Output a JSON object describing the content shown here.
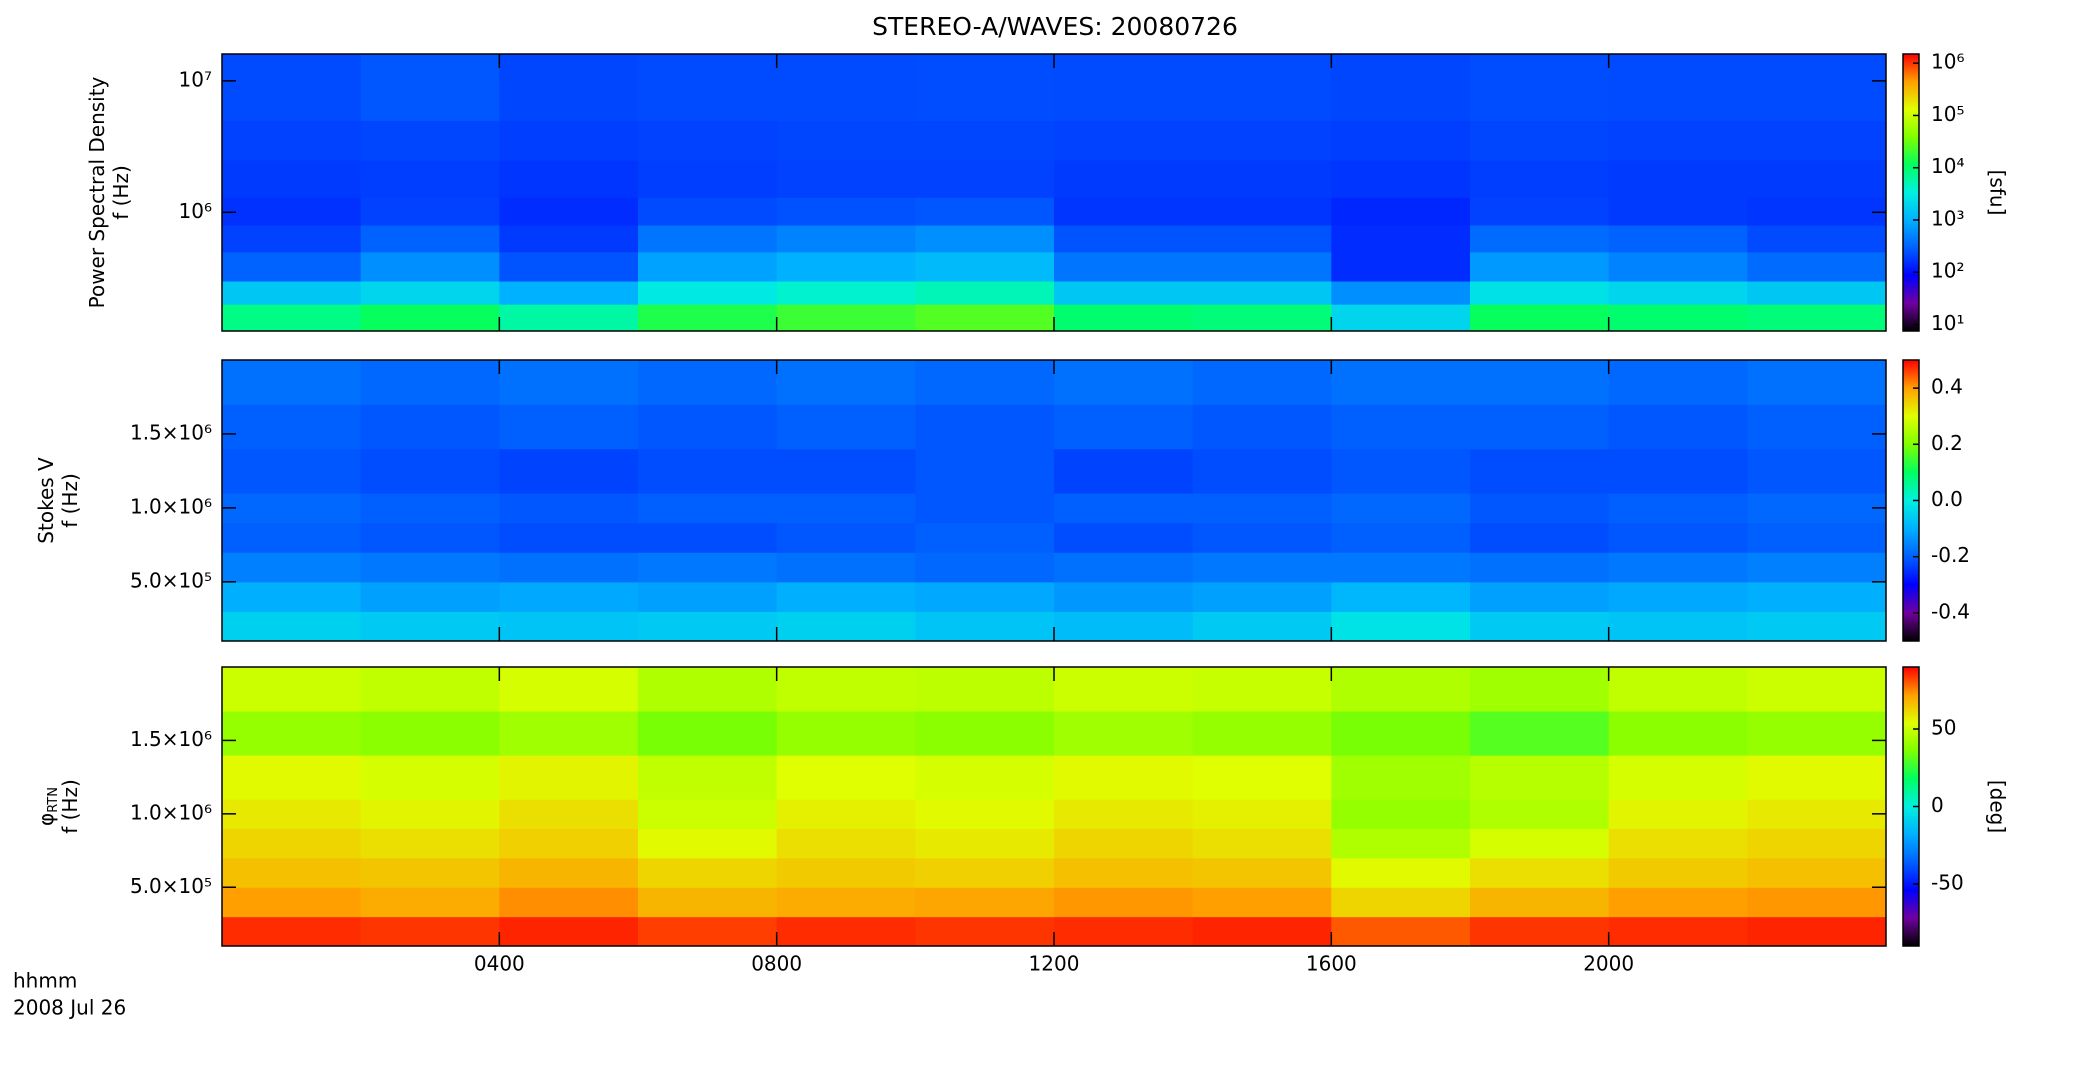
{
  "title": "STEREO-A/WAVES: 20080726",
  "x_label": [
    "hhmm",
    "2008 Jul 26"
  ],
  "chart_data": [
    {
      "type": "heatmap",
      "log": true,
      "ylabel": [
        "Power Spectral Density",
        "f (Hz)"
      ],
      "xlim": [
        0,
        24
      ],
      "ylim": [
        125000,
        16000000
      ],
      "yticks": [
        {
          "value": 1000000,
          "label": "10⁶"
        },
        {
          "value": 10000000,
          "label": "10⁷"
        }
      ],
      "x_edges": [
        0,
        2,
        4,
        6,
        8,
        10,
        12,
        14,
        16,
        18,
        20,
        22,
        24
      ],
      "y_edges": [
        125000,
        200000,
        300000,
        500000,
        800000,
        1300000,
        2500000,
        5000000,
        16000000
      ],
      "z": [
        [
          8000,
          12000,
          6000,
          15000,
          20000,
          25000,
          10000,
          9000,
          2000,
          12000,
          10000,
          9000
        ],
        [
          1500,
          2000,
          1000,
          3000,
          4000,
          5000,
          1500,
          1500,
          600,
          2500,
          2000,
          1500
        ],
        [
          300,
          600,
          250,
          800,
          1000,
          1200,
          400,
          400,
          150,
          700,
          500,
          350
        ],
        [
          200,
          300,
          180,
          400,
          500,
          600,
          250,
          250,
          150,
          350,
          300,
          220
        ],
        [
          160,
          200,
          150,
          220,
          240,
          260,
          170,
          170,
          140,
          200,
          180,
          170
        ],
        [
          180,
          190,
          170,
          190,
          200,
          200,
          180,
          180,
          170,
          190,
          180,
          180
        ],
        [
          200,
          210,
          190,
          200,
          210,
          210,
          200,
          200,
          190,
          210,
          200,
          200
        ],
        [
          220,
          260,
          210,
          220,
          220,
          230,
          220,
          220,
          210,
          230,
          220,
          220
        ]
      ],
      "clim": [
        7.5,
        1500000
      ],
      "clog": true,
      "cticks": [
        {
          "value": 10,
          "label": "10¹"
        },
        {
          "value": 100,
          "label": "10²"
        },
        {
          "value": 1000,
          "label": "10³"
        },
        {
          "value": 10000,
          "label": "10⁴"
        },
        {
          "value": 100000,
          "label": "10⁵"
        },
        {
          "value": 1000000,
          "label": "10⁶"
        }
      ],
      "clabel": "[sfu]",
      "colormap": [
        "#000000",
        "#7000a0",
        "#0000ff",
        "#0060ff",
        "#00b0ff",
        "#00f0e0",
        "#00ff60",
        "#80ff00",
        "#e0ff00",
        "#ffa000",
        "#ff0000"
      ]
    },
    {
      "type": "heatmap",
      "log": false,
      "ylabel": [
        "Stokes V",
        "f (Hz)"
      ],
      "xlim": [
        0,
        24
      ],
      "ylim": [
        100000,
        2000000
      ],
      "yticks": [
        {
          "value": 500000,
          "label": "5.0×10⁵"
        },
        {
          "value": 1000000,
          "label": "1.0×10⁶"
        },
        {
          "value": 1500000,
          "label": "1.5×10⁶"
        }
      ],
      "x_edges": [
        0,
        2,
        4,
        6,
        8,
        10,
        12,
        14,
        16,
        18,
        20,
        22,
        24
      ],
      "y_edges": [
        100000,
        300000,
        500000,
        700000,
        900000,
        1100000,
        1400000,
        1700000,
        2000000
      ],
      "z": [
        [
          -0.05,
          -0.06,
          -0.07,
          -0.06,
          -0.05,
          -0.07,
          -0.08,
          -0.06,
          -0.02,
          -0.06,
          -0.07,
          -0.06
        ],
        [
          -0.1,
          -0.12,
          -0.11,
          -0.12,
          -0.1,
          -0.11,
          -0.13,
          -0.12,
          -0.09,
          -0.12,
          -0.11,
          -0.1
        ],
        [
          -0.16,
          -0.17,
          -0.18,
          -0.17,
          -0.18,
          -0.19,
          -0.18,
          -0.17,
          -0.17,
          -0.18,
          -0.17,
          -0.16
        ],
        [
          -0.2,
          -0.21,
          -0.22,
          -0.22,
          -0.21,
          -0.2,
          -0.22,
          -0.21,
          -0.2,
          -0.22,
          -0.21,
          -0.2
        ],
        [
          -0.19,
          -0.2,
          -0.21,
          -0.2,
          -0.2,
          -0.21,
          -0.2,
          -0.2,
          -0.19,
          -0.21,
          -0.2,
          -0.19
        ],
        [
          -0.21,
          -0.22,
          -0.23,
          -0.22,
          -0.22,
          -0.21,
          -0.23,
          -0.22,
          -0.21,
          -0.22,
          -0.22,
          -0.21
        ],
        [
          -0.2,
          -0.21,
          -0.2,
          -0.21,
          -0.2,
          -0.21,
          -0.2,
          -0.21,
          -0.2,
          -0.2,
          -0.21,
          -0.2
        ],
        [
          -0.18,
          -0.19,
          -0.18,
          -0.19,
          -0.18,
          -0.19,
          -0.18,
          -0.19,
          -0.18,
          -0.18,
          -0.19,
          -0.18
        ]
      ],
      "clim": [
        -0.5,
        0.5
      ],
      "clog": false,
      "cticks": [
        -0.4,
        -0.2,
        {
          "value": 0,
          "label": "0.0"
        },
        0.2,
        0.4
      ],
      "colormap": [
        "#000000",
        "#7000a0",
        "#0000ff",
        "#0060ff",
        "#00b0ff",
        "#00f0e0",
        "#00ff60",
        "#80ff00",
        "#e0ff00",
        "#ffa000",
        "#ff0000"
      ]
    },
    {
      "type": "heatmap",
      "log": false,
      "ylabel": [
        "φ",
        "f (Hz)"
      ],
      "ylabel_sub": "RTN",
      "xlim": [
        0,
        24
      ],
      "ylim": [
        100000,
        2000000
      ],
      "xticks": [
        {
          "value": 4,
          "label": "0400"
        },
        {
          "value": 8,
          "label": "0800"
        },
        {
          "value": 12,
          "label": "1200"
        },
        {
          "value": 16,
          "label": "1600"
        },
        {
          "value": 20,
          "label": "2000"
        }
      ],
      "yticks": [
        {
          "value": 500000,
          "label": "5.0×10⁵"
        },
        {
          "value": 1000000,
          "label": "1.0×10⁶"
        },
        {
          "value": 1500000,
          "label": "1.5×10⁶"
        }
      ],
      "x_edges": [
        0,
        2,
        4,
        6,
        8,
        10,
        12,
        14,
        16,
        18,
        20,
        22,
        24
      ],
      "y_edges": [
        100000,
        300000,
        500000,
        700000,
        900000,
        1100000,
        1400000,
        1700000,
        2000000
      ],
      "z": [
        [
          85,
          84,
          86,
          83,
          85,
          84,
          85,
          86,
          80,
          84,
          85,
          86
        ],
        [
          72,
          70,
          74,
          68,
          70,
          71,
          73,
          72,
          62,
          68,
          72,
          73
        ],
        [
          66,
          65,
          68,
          62,
          64,
          63,
          66,
          65,
          55,
          60,
          64,
          66
        ],
        [
          62,
          60,
          63,
          55,
          60,
          58,
          62,
          60,
          45,
          52,
          60,
          62
        ],
        [
          58,
          56,
          60,
          50,
          57,
          55,
          58,
          57,
          40,
          45,
          56,
          58
        ],
        [
          55,
          52,
          56,
          48,
          54,
          52,
          55,
          54,
          42,
          46,
          52,
          55
        ],
        [
          40,
          38,
          42,
          35,
          40,
          38,
          42,
          40,
          35,
          30,
          38,
          40
        ],
        [
          50,
          48,
          52,
          45,
          48,
          47,
          50,
          49,
          45,
          42,
          48,
          50
        ]
      ],
      "clim": [
        -90,
        90
      ],
      "clog": false,
      "cticks": [
        -50,
        0,
        50
      ],
      "clabel": "[deg]",
      "colormap": [
        "#000000",
        "#7000a0",
        "#0000ff",
        "#0060ff",
        "#00b0ff",
        "#00f0e0",
        "#00ff60",
        "#80ff00",
        "#e0ff00",
        "#ffa000",
        "#ff0000"
      ]
    }
  ]
}
